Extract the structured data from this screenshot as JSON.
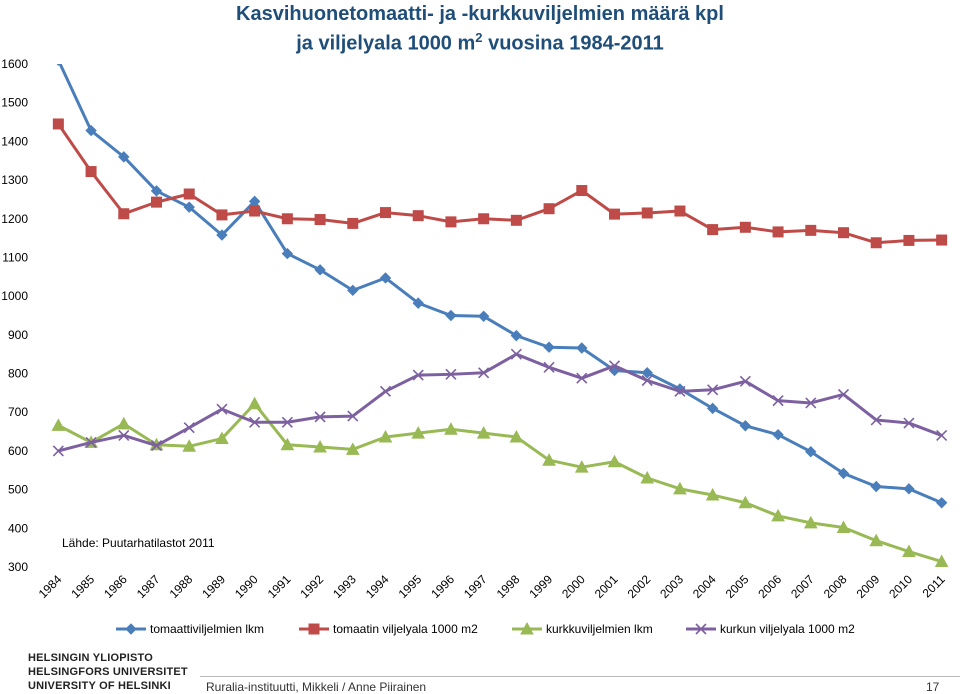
{
  "chart_data": {
    "type": "line",
    "title_line1": "Kasvihuonetomaatti- ja -kurkkuviljelmien määrä kpl",
    "title_line2_pre": "ja viljelyala 1000 m",
    "title_line2_sup": "2",
    "title_line2_post": " vuosina 1984-2011",
    "source_note": "Lähde: Puutarhatilastot 2011",
    "ylim": [
      300,
      1600
    ],
    "yticks": [
      300,
      400,
      500,
      600,
      700,
      800,
      900,
      1000,
      1100,
      1200,
      1300,
      1400,
      1500,
      1600
    ],
    "categories": [
      "1984",
      "1985",
      "1986",
      "1987",
      "1988",
      "1989",
      "1990",
      "1991",
      "1992",
      "1993",
      "1994",
      "1995",
      "1996",
      "1997",
      "1998",
      "1999",
      "2000",
      "2001",
      "2002",
      "2003",
      "2004",
      "2005",
      "2006",
      "2007",
      "2008",
      "2009",
      "2010",
      "2011"
    ],
    "series": [
      {
        "name": "tomaattiviljelmien lkm",
        "color": "#4a7ebb",
        "marker": "diamond",
        "values": [
          1610,
          1428,
          1360,
          1272,
          1230,
          1158,
          1245,
          1110,
          1068,
          1015,
          1047,
          982,
          950,
          948,
          898,
          868,
          866,
          808,
          802,
          760,
          710,
          665,
          642,
          598,
          542,
          508,
          502,
          466
        ]
      },
      {
        "name": "tomaatin viljelyala 1000 m2",
        "color": "#be4b48",
        "marker": "square",
        "values": [
          1445,
          1322,
          1213,
          1243,
          1264,
          1210,
          1220,
          1200,
          1198,
          1188,
          1216,
          1208,
          1192,
          1200,
          1196,
          1226,
          1273,
          1212,
          1215,
          1220,
          1172,
          1178,
          1166,
          1170,
          1164,
          1138,
          1144,
          1145
        ]
      },
      {
        "name": "kurkkuviljelmien lkm",
        "color": "#98b954",
        "marker": "triangle",
        "values": [
          666,
          622,
          670,
          616,
          612,
          632,
          722,
          616,
          610,
          604,
          636,
          646,
          656,
          646,
          636,
          576,
          558,
          572,
          530,
          502,
          486,
          466,
          432,
          414,
          402,
          368,
          340,
          314
        ]
      },
      {
        "name": "kurkun viljelyala 1000 m2",
        "color": "#7d60a0",
        "marker": "x",
        "values": [
          600,
          622,
          640,
          614,
          660,
          708,
          674,
          674,
          688,
          690,
          754,
          796,
          798,
          802,
          850,
          816,
          788,
          820,
          782,
          754,
          758,
          780,
          730,
          724,
          746,
          680,
          672,
          640
        ]
      }
    ]
  },
  "footer": {
    "university_line1": "HELSINGIN YLIOPISTO",
    "university_line2": "HELSINGFORS UNIVERSITET",
    "university_line3": "UNIVERSITY OF HELSINKI",
    "credit": "Ruralia-instituutti, Mikkeli / Anne Piirainen",
    "page_number": "17"
  }
}
